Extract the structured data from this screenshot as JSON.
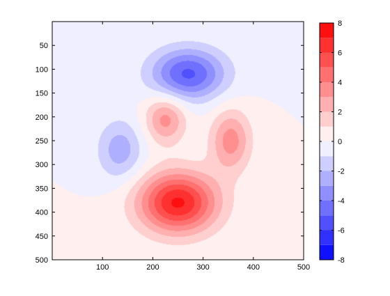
{
  "chart_data": {
    "type": "heatmap",
    "title": "",
    "xlabel": "",
    "ylabel": "",
    "xlim": [
      0,
      500
    ],
    "ylim": [
      0,
      500
    ],
    "y_reversed": true,
    "x_ticks": [
      100,
      200,
      300,
      400,
      500
    ],
    "y_ticks": [
      50,
      100,
      150,
      200,
      250,
      300,
      350,
      400,
      450,
      500
    ],
    "x_tick_labels": [
      "100",
      "200",
      "300",
      "400",
      "500"
    ],
    "y_tick_labels": [
      "50",
      "100",
      "150",
      "200",
      "250",
      "300",
      "350",
      "400",
      "450",
      "500"
    ],
    "grid": false,
    "contour_levels": 16,
    "blobs": [
      {
        "name": "upper-blue",
        "x": 270,
        "y": 110,
        "peak": -5.2,
        "sx": 52,
        "sy": 38
      },
      {
        "name": "left-blue",
        "x": 135,
        "y": 270,
        "peak": -2.6,
        "sx": 32,
        "sy": 45
      },
      {
        "name": "center-red",
        "x": 225,
        "y": 205,
        "peak": 3.4,
        "sx": 28,
        "sy": 35
      },
      {
        "name": "right-red",
        "x": 355,
        "y": 250,
        "peak": 3.5,
        "sx": 28,
        "sy": 45
      },
      {
        "name": "bottom-red",
        "x": 250,
        "y": 380,
        "peak": 7.2,
        "sx": 55,
        "sy": 45
      }
    ],
    "colorbar": {
      "min": -8,
      "max": 8,
      "ticks": [
        8,
        6,
        4,
        2,
        0,
        -2,
        -4,
        -6,
        -8
      ],
      "tick_labels": [
        "8",
        "6",
        "4",
        "2",
        "0",
        "-2",
        "-4",
        "-6",
        "-8"
      ],
      "levels": 16,
      "colormap": "blue-white-red",
      "low_color": "#0000ff",
      "mid_color": "#ffffff",
      "high_color": "#ff0000"
    }
  }
}
